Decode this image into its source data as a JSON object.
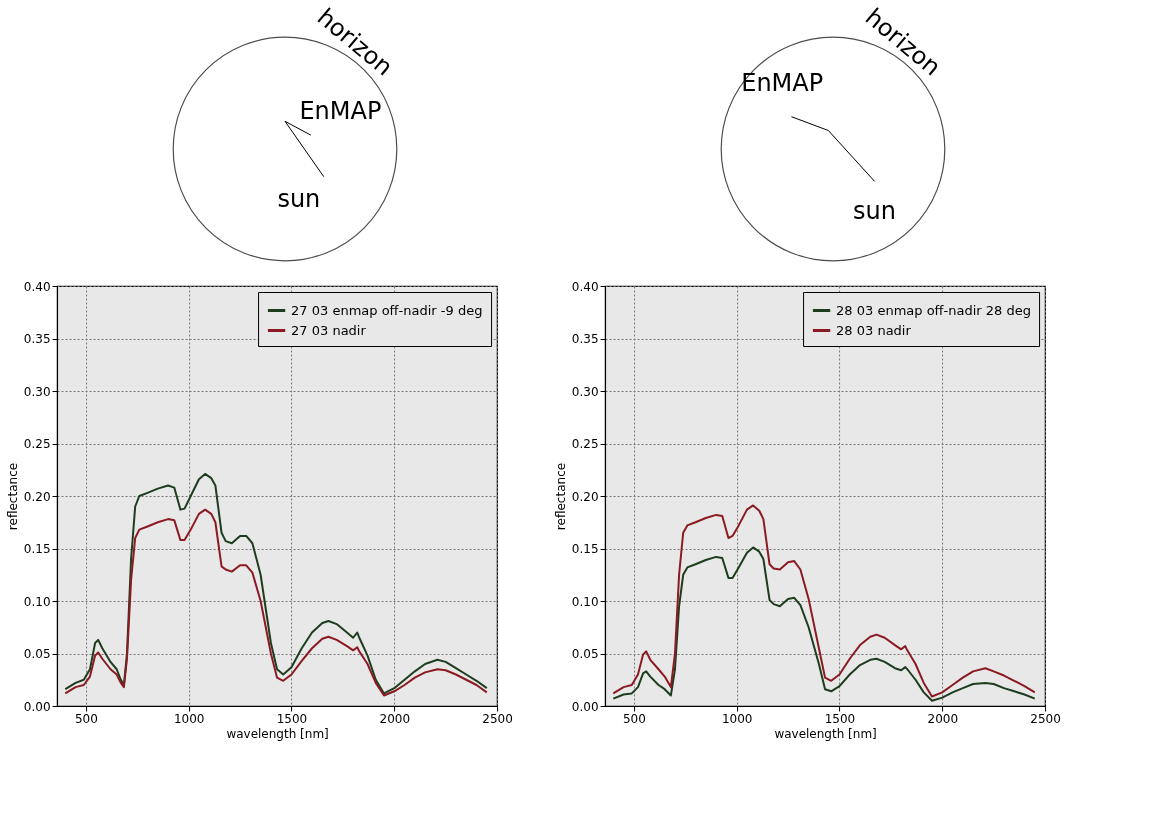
{
  "chart_data": [
    {
      "type": "line",
      "xlabel": "wavelength [nm]",
      "ylabel": "reflectance",
      "annotations": [
        "horizon",
        "EnMAP",
        "sun"
      ],
      "x": [
        400,
        450,
        490,
        520,
        545,
        560,
        580,
        620,
        650,
        670,
        685,
        700,
        720,
        740,
        760,
        800,
        850,
        900,
        930,
        960,
        980,
        1010,
        1050,
        1080,
        1110,
        1130,
        1160,
        1180,
        1210,
        1250,
        1280,
        1310,
        1350,
        1400,
        1430,
        1460,
        1500,
        1550,
        1600,
        1650,
        1680,
        1720,
        1770,
        1800,
        1820,
        1830,
        1870,
        1910,
        1950,
        2000,
        2050,
        2100,
        2150,
        2210,
        2250,
        2300,
        2350,
        2400,
        2450
      ],
      "series": [
        {
          "name": "27 03 enmap off-nadir -9 deg",
          "color": "#1e3d1e",
          "values": [
            0.016,
            0.022,
            0.025,
            0.035,
            0.06,
            0.063,
            0.055,
            0.042,
            0.035,
            0.025,
            0.02,
            0.05,
            0.14,
            0.19,
            0.2,
            0.203,
            0.207,
            0.21,
            0.208,
            0.187,
            0.188,
            0.2,
            0.216,
            0.221,
            0.217,
            0.21,
            0.165,
            0.157,
            0.155,
            0.162,
            0.162,
            0.155,
            0.125,
            0.06,
            0.035,
            0.03,
            0.037,
            0.055,
            0.07,
            0.079,
            0.081,
            0.078,
            0.07,
            0.065,
            0.07,
            0.065,
            0.048,
            0.025,
            0.012,
            0.017,
            0.025,
            0.033,
            0.04,
            0.044,
            0.042,
            0.036,
            0.03,
            0.024,
            0.017
          ]
        },
        {
          "name": "27 03 nadir",
          "color": "#8b1a22",
          "values": [
            0.012,
            0.018,
            0.02,
            0.028,
            0.048,
            0.051,
            0.045,
            0.035,
            0.03,
            0.022,
            0.018,
            0.045,
            0.12,
            0.16,
            0.168,
            0.171,
            0.175,
            0.178,
            0.177,
            0.158,
            0.158,
            0.168,
            0.183,
            0.187,
            0.183,
            0.175,
            0.133,
            0.13,
            0.128,
            0.134,
            0.134,
            0.127,
            0.1,
            0.05,
            0.027,
            0.024,
            0.03,
            0.043,
            0.055,
            0.064,
            0.066,
            0.063,
            0.057,
            0.053,
            0.056,
            0.052,
            0.04,
            0.022,
            0.01,
            0.014,
            0.02,
            0.027,
            0.032,
            0.035,
            0.034,
            0.03,
            0.025,
            0.02,
            0.013
          ]
        }
      ],
      "xlim": [
        360,
        2500
      ],
      "ylim": [
        0,
        0.4
      ],
      "xticks": [
        500,
        1000,
        1500,
        2000,
        2500
      ],
      "yticks": [
        {
          "value": 0,
          "label": "0.00"
        },
        {
          "value": 0.05,
          "label": "0.05"
        },
        {
          "value": 0.1,
          "label": "0.10"
        },
        {
          "value": 0.15,
          "label": "0.15"
        },
        {
          "value": 0.2,
          "label": "0.20"
        },
        {
          "value": 0.25,
          "label": "0.25"
        },
        {
          "value": 0.3,
          "label": "0.30"
        },
        {
          "value": 0.35,
          "label": "0.35"
        },
        {
          "value": 0.4,
          "label": "0.40"
        }
      ],
      "grid": true,
      "legend": "top right"
    },
    {
      "type": "line",
      "xlabel": "wavelength [nm]",
      "ylabel": "reflectance",
      "annotations": [
        "horizon",
        "EnMAP",
        "sun"
      ],
      "x": [
        400,
        450,
        490,
        520,
        545,
        560,
        580,
        620,
        650,
        680,
        700,
        720,
        740,
        760,
        800,
        850,
        900,
        930,
        960,
        980,
        1010,
        1050,
        1080,
        1110,
        1130,
        1160,
        1180,
        1210,
        1250,
        1280,
        1310,
        1350,
        1400,
        1430,
        1460,
        1500,
        1550,
        1600,
        1650,
        1680,
        1720,
        1770,
        1800,
        1820,
        1830,
        1870,
        1910,
        1950,
        2000,
        2050,
        2100,
        2150,
        2210,
        2250,
        2300,
        2350,
        2400,
        2450
      ],
      "series": [
        {
          "name": "28 03 enmap off-nadir 28 deg",
          "color": "#1e3d1e",
          "values": [
            0.007,
            0.011,
            0.012,
            0.018,
            0.031,
            0.033,
            0.028,
            0.02,
            0.016,
            0.01,
            0.035,
            0.095,
            0.125,
            0.132,
            0.135,
            0.139,
            0.142,
            0.141,
            0.122,
            0.122,
            0.132,
            0.146,
            0.151,
            0.147,
            0.14,
            0.101,
            0.097,
            0.095,
            0.102,
            0.103,
            0.096,
            0.075,
            0.04,
            0.016,
            0.014,
            0.019,
            0.03,
            0.039,
            0.044,
            0.045,
            0.042,
            0.036,
            0.034,
            0.037,
            0.035,
            0.025,
            0.013,
            0.005,
            0.008,
            0.013,
            0.017,
            0.021,
            0.022,
            0.021,
            0.017,
            0.014,
            0.011,
            0.007
          ]
        },
        {
          "name": "28 03 nadir",
          "color": "#8b1a22",
          "values": [
            0.012,
            0.018,
            0.02,
            0.03,
            0.049,
            0.052,
            0.044,
            0.035,
            0.028,
            0.018,
            0.05,
            0.125,
            0.165,
            0.172,
            0.175,
            0.179,
            0.182,
            0.181,
            0.16,
            0.162,
            0.172,
            0.187,
            0.191,
            0.186,
            0.178,
            0.135,
            0.131,
            0.13,
            0.137,
            0.138,
            0.13,
            0.102,
            0.055,
            0.027,
            0.024,
            0.03,
            0.045,
            0.058,
            0.066,
            0.068,
            0.065,
            0.058,
            0.054,
            0.057,
            0.053,
            0.04,
            0.022,
            0.009,
            0.013,
            0.02,
            0.027,
            0.033,
            0.036,
            0.033,
            0.029,
            0.024,
            0.019,
            0.013
          ]
        }
      ],
      "xlim": [
        360,
        2500
      ],
      "ylim": [
        0,
        0.4
      ],
      "xticks": [
        500,
        1000,
        1500,
        2000,
        2500
      ],
      "yticks": [
        {
          "value": 0,
          "label": "0.00"
        },
        {
          "value": 0.05,
          "label": "0.05"
        },
        {
          "value": 0.1,
          "label": "0.10"
        },
        {
          "value": 0.15,
          "label": "0.15"
        },
        {
          "value": 0.2,
          "label": "0.20"
        },
        {
          "value": 0.25,
          "label": "0.25"
        },
        {
          "value": 0.3,
          "label": "0.30"
        },
        {
          "value": 0.35,
          "label": "0.35"
        },
        {
          "value": 0.4,
          "label": "0.40"
        }
      ],
      "grid": true,
      "legend": "top right"
    }
  ]
}
